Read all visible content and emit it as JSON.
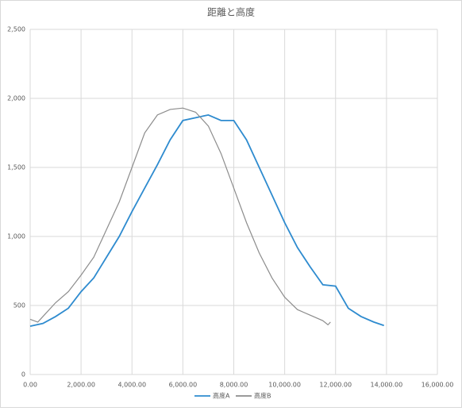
{
  "chart_data": {
    "type": "line",
    "title": "距離と高度",
    "series": [
      {
        "name": "高度A",
        "color": "#2e8bcf",
        "x": [
          0,
          500,
          1000,
          1500,
          2000,
          2500,
          3000,
          3500,
          4000,
          4500,
          5000,
          5500,
          6000,
          6500,
          7000,
          7500,
          8000,
          8500,
          9000,
          9500,
          10000,
          10500,
          11000,
          11500,
          12000,
          12500,
          13000,
          13500,
          13900
        ],
        "values": [
          350,
          370,
          420,
          480,
          600,
          700,
          850,
          1000,
          1180,
          1350,
          1520,
          1700,
          1840,
          1860,
          1880,
          1840,
          1840,
          1700,
          1500,
          1300,
          1100,
          920,
          780,
          650,
          640,
          480,
          420,
          380,
          355
        ]
      },
      {
        "name": "高度B",
        "color": "#8c8c8c",
        "x": [
          0,
          300,
          500,
          1000,
          1500,
          2000,
          2500,
          3000,
          3500,
          4000,
          4500,
          5000,
          5500,
          6000,
          6500,
          7000,
          7500,
          8000,
          8500,
          9000,
          9500,
          10000,
          10500,
          11000,
          11500,
          11700,
          11800
        ],
        "values": [
          400,
          380,
          420,
          520,
          600,
          720,
          850,
          1050,
          1250,
          1500,
          1750,
          1880,
          1920,
          1930,
          1900,
          1800,
          1600,
          1350,
          1100,
          880,
          700,
          560,
          470,
          430,
          390,
          360,
          380
        ]
      }
    ],
    "xlim": [
      0,
      16000
    ],
    "xticks": [
      {
        "value": 0,
        "label": "0.00"
      },
      {
        "value": 2000,
        "label": "2,000.00"
      },
      {
        "value": 4000,
        "label": "4,000.00"
      },
      {
        "value": 6000,
        "label": "6,000.00"
      },
      {
        "value": 8000,
        "label": "8,000.00"
      },
      {
        "value": 10000,
        "label": "10,000.00"
      },
      {
        "value": 12000,
        "label": "12,000.00"
      },
      {
        "value": 14000,
        "label": "14,000.00"
      },
      {
        "value": 16000,
        "label": "16,000.00"
      }
    ],
    "ylim": [
      0,
      2500
    ],
    "yticks": [
      0,
      500,
      {
        "value": 1000,
        "label": "1,000"
      },
      {
        "value": 1500,
        "label": "1,500"
      },
      {
        "value": 2000,
        "label": "2,000"
      },
      {
        "value": 2500,
        "label": "2,500"
      }
    ],
    "grid": true,
    "legend": "bottom"
  }
}
